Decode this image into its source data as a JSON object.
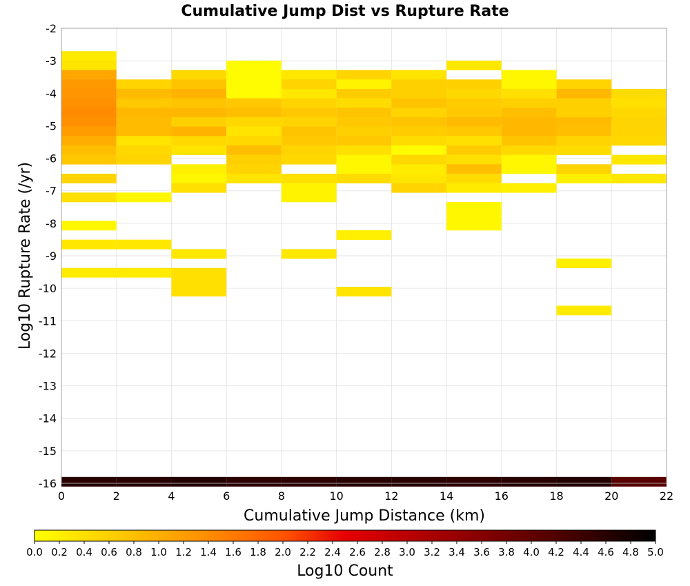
{
  "chart_data": {
    "type": "heatmap",
    "title": "Cumulative Jump Dist vs Rupture Rate",
    "xlabel": "Cumulative Jump Distance (km)",
    "ylabel": "Log10 Rupture Rate (/yr)",
    "xlim": [
      0,
      22
    ],
    "ylim": [
      -16,
      -2
    ],
    "x_ticks": [
      "0",
      "2",
      "4",
      "6",
      "8",
      "10",
      "12",
      "14",
      "16",
      "18",
      "20",
      "22"
    ],
    "y_ticks": [
      "-2",
      "-3",
      "-4",
      "-5",
      "-6",
      "-7",
      "-8",
      "-9",
      "-10",
      "-11",
      "-12",
      "-13",
      "-14",
      "-15",
      "-16"
    ],
    "x_bin_width": 2,
    "y_bin_height": 0.29,
    "grid": true,
    "colorbar": {
      "label": "Log10 Count",
      "range": [
        0,
        5
      ],
      "ticks": [
        "0.0",
        "0.2",
        "0.4",
        "0.6",
        "0.8",
        "1.0",
        "1.2",
        "1.4",
        "1.6",
        "1.8",
        "2.0",
        "2.2",
        "2.4",
        "2.6",
        "2.8",
        "3.0",
        "3.2",
        "3.4",
        "3.6",
        "3.8",
        "4.0",
        "4.2",
        "4.4",
        "4.6",
        "4.8",
        "5.0"
      ],
      "colors": [
        "#ffff00",
        "#ffc800",
        "#ff8c00",
        "#ff5500",
        "#e60000",
        "#a00000",
        "#500000",
        "#000000"
      ]
    },
    "cells": [
      {
        "x0": 0,
        "y": -2.85,
        "v": 0.25
      },
      {
        "x0": 0,
        "y": -3.14,
        "v": 0.35
      },
      {
        "x0": 0,
        "y": -3.43,
        "v": 1.1
      },
      {
        "x0": 0,
        "y": -3.72,
        "v": 1.25
      },
      {
        "x0": 0,
        "y": -4.01,
        "v": 1.3
      },
      {
        "x0": 0,
        "y": -4.3,
        "v": 1.35
      },
      {
        "x0": 0,
        "y": -4.59,
        "v": 1.4
      },
      {
        "x0": 0,
        "y": -4.88,
        "v": 1.35
      },
      {
        "x0": 0,
        "y": -5.17,
        "v": 1.2
      },
      {
        "x0": 0,
        "y": -5.46,
        "v": 1.0
      },
      {
        "x0": 0,
        "y": -5.75,
        "v": 0.8
      },
      {
        "x0": 0,
        "y": -6.04,
        "v": 0.7
      },
      {
        "x0": 0,
        "y": -6.62,
        "v": 0.55
      },
      {
        "x0": 0,
        "y": -7.2,
        "v": 0.4
      },
      {
        "x0": 0,
        "y": -8.07,
        "v": 0.1
      },
      {
        "x0": 0,
        "y": -8.65,
        "v": 0.3
      },
      {
        "x0": 0,
        "y": -9.52,
        "v": 0.25
      },
      {
        "x0": 2,
        "y": -3.72,
        "v": 0.55
      },
      {
        "x0": 2,
        "y": -4.01,
        "v": 0.85
      },
      {
        "x0": 2,
        "y": -4.3,
        "v": 0.7
      },
      {
        "x0": 2,
        "y": -4.59,
        "v": 0.9
      },
      {
        "x0": 2,
        "y": -4.88,
        "v": 0.85
      },
      {
        "x0": 2,
        "y": -5.17,
        "v": 0.85
      },
      {
        "x0": 2,
        "y": -5.46,
        "v": 0.35
      },
      {
        "x0": 2,
        "y": -5.75,
        "v": 0.5
      },
      {
        "x0": 2,
        "y": -6.04,
        "v": 0.55
      },
      {
        "x0": 2,
        "y": -7.2,
        "v": 0.1
      },
      {
        "x0": 2,
        "y": -8.65,
        "v": 0.3
      },
      {
        "x0": 2,
        "y": -9.52,
        "v": 0.25
      },
      {
        "x0": 4,
        "y": -3.43,
        "v": 0.5
      },
      {
        "x0": 4,
        "y": -3.72,
        "v": 0.75
      },
      {
        "x0": 4,
        "y": -4.01,
        "v": 0.95
      },
      {
        "x0": 4,
        "y": -4.3,
        "v": 0.75
      },
      {
        "x0": 4,
        "y": -4.59,
        "v": 0.9
      },
      {
        "x0": 4,
        "y": -4.88,
        "v": 0.6
      },
      {
        "x0": 4,
        "y": -5.17,
        "v": 0.95
      },
      {
        "x0": 4,
        "y": -5.46,
        "v": 0.5
      },
      {
        "x0": 4,
        "y": -5.75,
        "v": 0.35
      },
      {
        "x0": 4,
        "y": -6.33,
        "v": 0.2
      },
      {
        "x0": 4,
        "y": -6.62,
        "v": 0.1
      },
      {
        "x0": 4,
        "y": -6.91,
        "v": 0.4
      },
      {
        "x0": 4,
        "y": -8.94,
        "v": 0.3
      },
      {
        "x0": 4,
        "y": -9.52,
        "v": 0.4
      },
      {
        "x0": 4,
        "y": -9.81,
        "v": 0.4
      },
      {
        "x0": 4,
        "y": -10.1,
        "v": 0.4
      },
      {
        "x0": 6,
        "y": -3.14,
        "v": 0.05
      },
      {
        "x0": 6,
        "y": -3.43,
        "v": 0.05
      },
      {
        "x0": 6,
        "y": -3.72,
        "v": 0.05
      },
      {
        "x0": 6,
        "y": -4.01,
        "v": 0.05
      },
      {
        "x0": 6,
        "y": -4.3,
        "v": 0.7
      },
      {
        "x0": 6,
        "y": -4.59,
        "v": 0.8
      },
      {
        "x0": 6,
        "y": -4.88,
        "v": 0.5
      },
      {
        "x0": 6,
        "y": -5.17,
        "v": 0.35
      },
      {
        "x0": 6,
        "y": -5.46,
        "v": 0.5
      },
      {
        "x0": 6,
        "y": -5.75,
        "v": 0.8
      },
      {
        "x0": 6,
        "y": -6.04,
        "v": 0.6
      },
      {
        "x0": 6,
        "y": -6.33,
        "v": 0.55
      },
      {
        "x0": 6,
        "y": -6.62,
        "v": 0.35
      },
      {
        "x0": 8,
        "y": -3.43,
        "v": 0.3
      },
      {
        "x0": 8,
        "y": -3.72,
        "v": 0.55
      },
      {
        "x0": 8,
        "y": -4.01,
        "v": 0.3
      },
      {
        "x0": 8,
        "y": -4.3,
        "v": 0.55
      },
      {
        "x0": 8,
        "y": -4.59,
        "v": 0.7
      },
      {
        "x0": 8,
        "y": -4.88,
        "v": 0.55
      },
      {
        "x0": 8,
        "y": -5.17,
        "v": 0.75
      },
      {
        "x0": 8,
        "y": -5.46,
        "v": 0.7
      },
      {
        "x0": 8,
        "y": -5.75,
        "v": 0.55
      },
      {
        "x0": 8,
        "y": -6.04,
        "v": 0.5
      },
      {
        "x0": 8,
        "y": -6.62,
        "v": 0.4
      },
      {
        "x0": 8,
        "y": -6.91,
        "v": 0.15
      },
      {
        "x0": 8,
        "y": -7.2,
        "v": 0.15
      },
      {
        "x0": 8,
        "y": -8.94,
        "v": 0.3
      },
      {
        "x0": 10,
        "y": -3.43,
        "v": 0.55
      },
      {
        "x0": 10,
        "y": -3.72,
        "v": 0.15
      },
      {
        "x0": 10,
        "y": -4.01,
        "v": 0.65
      },
      {
        "x0": 10,
        "y": -4.3,
        "v": 0.45
      },
      {
        "x0": 10,
        "y": -4.59,
        "v": 0.75
      },
      {
        "x0": 10,
        "y": -4.88,
        "v": 0.7
      },
      {
        "x0": 10,
        "y": -5.17,
        "v": 0.6
      },
      {
        "x0": 10,
        "y": -5.46,
        "v": 0.7
      },
      {
        "x0": 10,
        "y": -5.75,
        "v": 0.4
      },
      {
        "x0": 10,
        "y": -6.04,
        "v": 0.1
      },
      {
        "x0": 10,
        "y": -6.33,
        "v": 0.1
      },
      {
        "x0": 10,
        "y": -6.62,
        "v": 0.45
      },
      {
        "x0": 10,
        "y": -8.36,
        "v": 0.2
      },
      {
        "x0": 10,
        "y": -10.1,
        "v": 0.35
      },
      {
        "x0": 12,
        "y": -3.43,
        "v": 0.35
      },
      {
        "x0": 12,
        "y": -3.72,
        "v": 0.6
      },
      {
        "x0": 12,
        "y": -4.01,
        "v": 0.6
      },
      {
        "x0": 12,
        "y": -4.3,
        "v": 0.75
      },
      {
        "x0": 12,
        "y": -4.59,
        "v": 0.55
      },
      {
        "x0": 12,
        "y": -4.88,
        "v": 0.75
      },
      {
        "x0": 12,
        "y": -5.17,
        "v": 0.65
      },
      {
        "x0": 12,
        "y": -5.46,
        "v": 0.45
      },
      {
        "x0": 12,
        "y": -5.75,
        "v": 0.05
      },
      {
        "x0": 12,
        "y": -6.04,
        "v": 0.5
      },
      {
        "x0": 12,
        "y": -6.33,
        "v": 0.25
      },
      {
        "x0": 12,
        "y": -6.62,
        "v": 0.3
      },
      {
        "x0": 12,
        "y": -6.91,
        "v": 0.55
      },
      {
        "x0": 14,
        "y": -3.14,
        "v": 0.3
      },
      {
        "x0": 14,
        "y": -3.72,
        "v": 0.6
      },
      {
        "x0": 14,
        "y": -4.01,
        "v": 0.5
      },
      {
        "x0": 14,
        "y": -4.3,
        "v": 0.65
      },
      {
        "x0": 14,
        "y": -4.59,
        "v": 0.7
      },
      {
        "x0": 14,
        "y": -4.88,
        "v": 0.85
      },
      {
        "x0": 14,
        "y": -5.17,
        "v": 0.7
      },
      {
        "x0": 14,
        "y": -5.46,
        "v": 0.4
      },
      {
        "x0": 14,
        "y": -5.75,
        "v": 0.65
      },
      {
        "x0": 14,
        "y": -6.04,
        "v": 0.4
      },
      {
        "x0": 14,
        "y": -6.33,
        "v": 0.8
      },
      {
        "x0": 14,
        "y": -6.62,
        "v": 0.45
      },
      {
        "x0": 14,
        "y": -6.91,
        "v": 0.25
      },
      {
        "x0": 14,
        "y": -7.49,
        "v": 0.1
      },
      {
        "x0": 14,
        "y": -7.78,
        "v": 0.1
      },
      {
        "x0": 14,
        "y": -8.07,
        "v": 0.1
      },
      {
        "x0": 16,
        "y": -3.43,
        "v": 0.1
      },
      {
        "x0": 16,
        "y": -3.72,
        "v": 0.1
      },
      {
        "x0": 16,
        "y": -4.01,
        "v": 0.4
      },
      {
        "x0": 16,
        "y": -4.3,
        "v": 0.6
      },
      {
        "x0": 16,
        "y": -4.59,
        "v": 0.8
      },
      {
        "x0": 16,
        "y": -4.88,
        "v": 0.9
      },
      {
        "x0": 16,
        "y": -5.17,
        "v": 0.9
      },
      {
        "x0": 16,
        "y": -5.46,
        "v": 0.75
      },
      {
        "x0": 16,
        "y": -5.75,
        "v": 0.5
      },
      {
        "x0": 16,
        "y": -6.04,
        "v": 0.1
      },
      {
        "x0": 16,
        "y": -6.33,
        "v": 0.1
      },
      {
        "x0": 16,
        "y": -6.91,
        "v": 0.2
      },
      {
        "x0": 18,
        "y": -3.72,
        "v": 0.55
      },
      {
        "x0": 18,
        "y": -4.01,
        "v": 0.9
      },
      {
        "x0": 18,
        "y": -4.3,
        "v": 0.6
      },
      {
        "x0": 18,
        "y": -4.59,
        "v": 0.6
      },
      {
        "x0": 18,
        "y": -4.88,
        "v": 0.85
      },
      {
        "x0": 18,
        "y": -5.17,
        "v": 0.8
      },
      {
        "x0": 18,
        "y": -5.46,
        "v": 0.55
      },
      {
        "x0": 18,
        "y": -5.75,
        "v": 0.45
      },
      {
        "x0": 18,
        "y": -6.33,
        "v": 0.55
      },
      {
        "x0": 18,
        "y": -6.62,
        "v": 0.2
      },
      {
        "x0": 18,
        "y": -9.23,
        "v": 0.2
      },
      {
        "x0": 18,
        "y": -10.68,
        "v": 0.25
      },
      {
        "x0": 20,
        "y": -4.01,
        "v": 0.45
      },
      {
        "x0": 20,
        "y": -4.3,
        "v": 0.4
      },
      {
        "x0": 20,
        "y": -4.59,
        "v": 0.5
      },
      {
        "x0": 20,
        "y": -4.88,
        "v": 0.55
      },
      {
        "x0": 20,
        "y": -5.17,
        "v": 0.55
      },
      {
        "x0": 20,
        "y": -5.46,
        "v": 0.5
      },
      {
        "x0": 20,
        "y": -6.04,
        "v": 0.3
      },
      {
        "x0": 20,
        "y": -6.62,
        "v": 0.3
      },
      {
        "x0": 0,
        "y": -15.95,
        "v": 4.6
      },
      {
        "x0": 2,
        "y": -15.95,
        "v": 4.6
      },
      {
        "x0": 4,
        "y": -15.95,
        "v": 4.65
      },
      {
        "x0": 6,
        "y": -15.95,
        "v": 4.55
      },
      {
        "x0": 8,
        "y": -15.95,
        "v": 4.55
      },
      {
        "x0": 10,
        "y": -15.95,
        "v": 4.6
      },
      {
        "x0": 12,
        "y": -15.95,
        "v": 4.6
      },
      {
        "x0": 14,
        "y": -15.95,
        "v": 4.55
      },
      {
        "x0": 16,
        "y": -15.95,
        "v": 4.6
      },
      {
        "x0": 18,
        "y": -15.95,
        "v": 4.65
      },
      {
        "x0": 20,
        "y": -15.95,
        "v": 4.1
      }
    ]
  }
}
